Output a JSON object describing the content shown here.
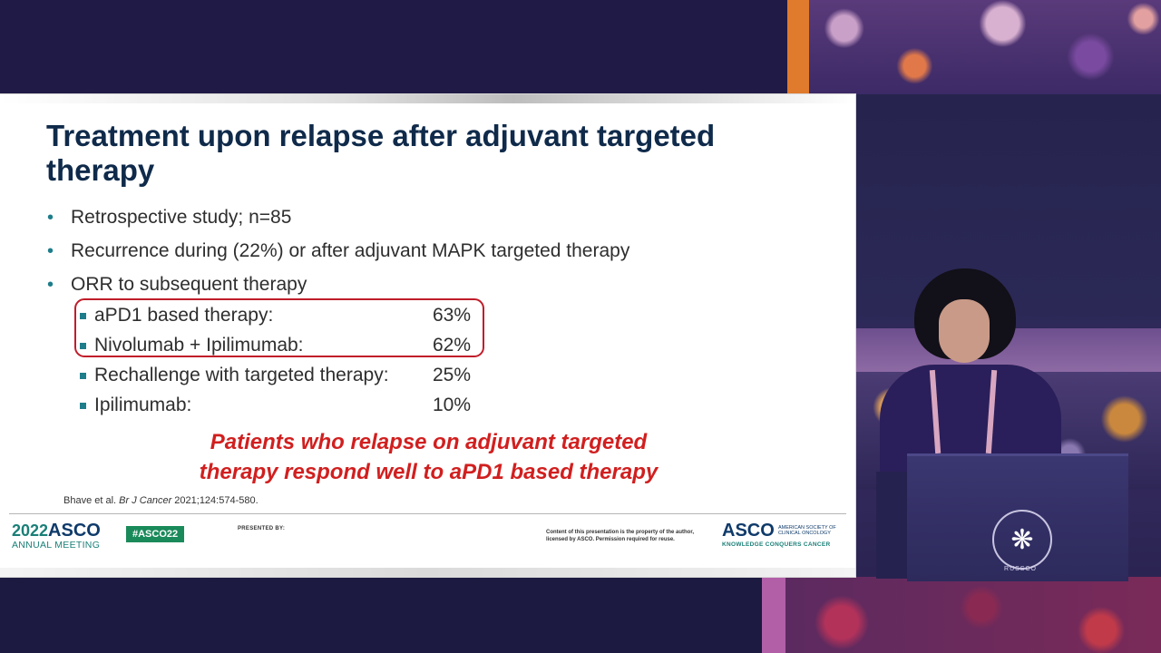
{
  "slide": {
    "title": "Treatment upon relapse after adjuvant targeted therapy",
    "bullets": [
      "Retrospective study; n=85",
      "Recurrence during (22%) or after adjuvant MAPK targeted therapy",
      "ORR to subsequent therapy"
    ],
    "sub_items": [
      {
        "label": "aPD1 based therapy:",
        "value": "63%"
      },
      {
        "label": "Nivolumab + Ipilimumab:",
        "value": "62%"
      },
      {
        "label": "Rechallenge with targeted therapy:",
        "value": "25%"
      },
      {
        "label": "Ipilimumab:",
        "value": "10%"
      }
    ],
    "conclusion_line1": "Patients who relapse on adjuvant targeted",
    "conclusion_line2": "therapy respond well to aPD1 based therapy",
    "citation_authors": "Bhave et al. ",
    "citation_journal": "Br J Cancer",
    "citation_details": " 2021;124:574-580."
  },
  "footer": {
    "year": "2022",
    "asco": "ASCO",
    "meeting": "ANNUAL MEETING",
    "hashtag": "#ASCO22",
    "presented_by": "PRESENTED BY:",
    "rights": "Content of this presentation is the property of the author, licensed by ASCO. Permission required for reuse.",
    "brand": "ASCO",
    "brand_small": "AMERICAN SOCIETY OF CLINICAL ONCOLOGY",
    "tagline": "KNOWLEDGE CONQUERS CANCER"
  },
  "podium": {
    "logo_text": "RUSSCO"
  },
  "colors": {
    "title": "#0f2a4a",
    "bullet": "#1d7d8a",
    "highlight": "#c01d2a",
    "conclusion": "#d11f1f"
  }
}
